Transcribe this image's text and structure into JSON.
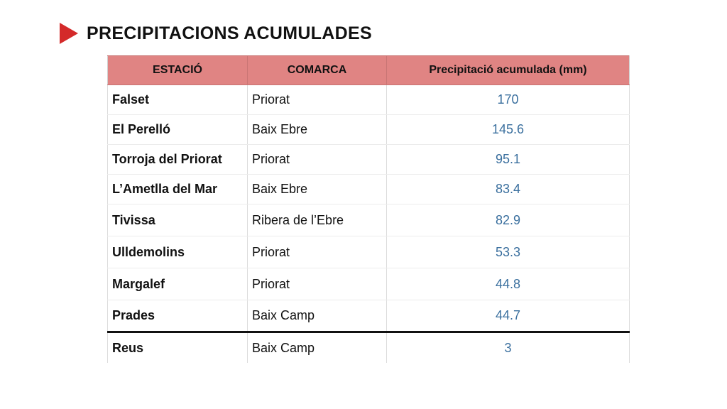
{
  "header": {
    "title": "PRECIPITACIONS ACUMULADES",
    "accent_color": "#d42a2a"
  },
  "table": {
    "header_color": "#e08483",
    "columns": [
      "ESTACIÓ",
      "COMARCA",
      "Precipitació acumulada (mm)"
    ],
    "rows": [
      {
        "station": "Falset",
        "comarca": "Priorat",
        "value": "170"
      },
      {
        "station": "El Perelló",
        "comarca": "Baix Ebre",
        "value": "145.6"
      },
      {
        "station": "Torroja del Priorat",
        "comarca": "Priorat",
        "value": "95.1"
      },
      {
        "station": "L’Ametlla del Mar",
        "comarca": "Baix Ebre",
        "value": "83.4"
      },
      {
        "station": "Tivissa",
        "comarca": "Ribera de l’Ebre",
        "value": "82.9"
      },
      {
        "station": "Ulldemolins",
        "comarca": "Priorat",
        "value": "53.3"
      },
      {
        "station": "Margalef",
        "comarca": "Priorat",
        "value": "44.8"
      },
      {
        "station": "Prades",
        "comarca": "Baix Camp",
        "value": "44.7"
      },
      {
        "station": "Reus",
        "comarca": "Baix Camp",
        "value": "3"
      }
    ]
  }
}
